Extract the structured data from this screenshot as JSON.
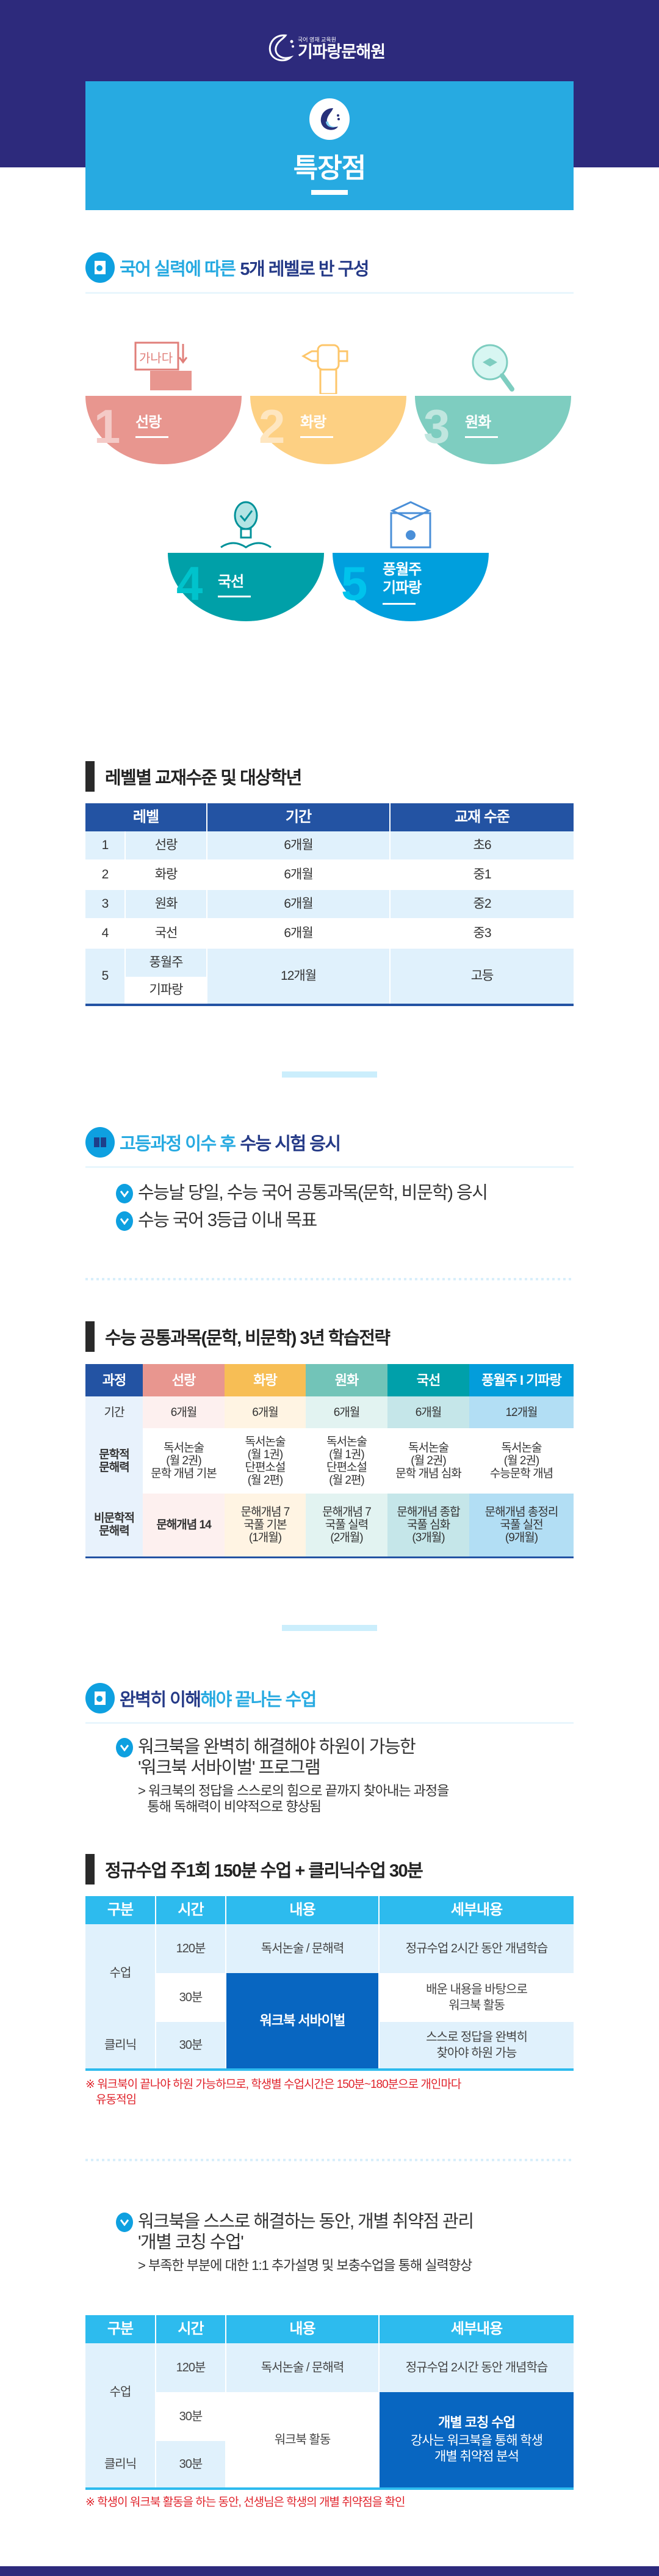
{
  "header": {
    "logo_sub": "국어 영재 교육원",
    "logo_main": "기파랑문해원",
    "hero_title": "특장점"
  },
  "colors": {
    "navy": "#2d2a7c",
    "sky": "#27aae1",
    "level1": "#e8968f",
    "level2": "#fdd083",
    "level3": "#7ecdc0",
    "level4": "#00a0a8",
    "level5": "#009fdd",
    "table_header": "#2353a3",
    "highlight": "#0866c1",
    "note_red": "#e0242c"
  },
  "section1": {
    "title_a": "국어 실력에 따른 ",
    "title_b": "5개 레벨로 반 구성",
    "levels": [
      {
        "num": "1",
        "label": "선랑",
        "icon": "speech-bubbles-icon"
      },
      {
        "num": "2",
        "label": "화랑",
        "icon": "fist-pencil-icon"
      },
      {
        "num": "3",
        "label": "원화",
        "icon": "magnifier-graduation-cap-icon"
      },
      {
        "num": "4",
        "label": "국선",
        "icon": "lightbulb-book-icon"
      },
      {
        "num": "5",
        "label": "풍월주",
        "label2": "기파랑",
        "icon": "graduation-certificate-icon"
      }
    ]
  },
  "table1": {
    "title": "레벨별 교재수준 및 대상학년",
    "headers": [
      "레벨",
      "기간",
      "교재 수준"
    ],
    "rows": [
      [
        "1",
        "선랑",
        "6개월",
        "초6"
      ],
      [
        "2",
        "화랑",
        "6개월",
        "중1"
      ],
      [
        "3",
        "원화",
        "6개월",
        "중2"
      ],
      [
        "4",
        "국선",
        "6개월",
        "중3"
      ]
    ],
    "last": {
      "num": "5",
      "name1": "풍월주",
      "name2": "기파랑",
      "period": "12개월",
      "level": "고등"
    }
  },
  "section2": {
    "title_a": "고등과정 이수 후 ",
    "title_b": "수능 시험 응시",
    "bullets": [
      "수능날 당일, 수능 국어 공통과목(문학, 비문학) 응시",
      "수능 국어 3등급 이내 목표"
    ]
  },
  "table3": {
    "title": "수능 공통과목(문학, 비문학) 3년 학습전략",
    "headers": [
      "과정",
      "선랑",
      "화랑",
      "원화",
      "국선",
      "풍월주 I 기파랑"
    ],
    "header_colors": [
      "#2353a3",
      "#e8968f",
      "#f7be55",
      "#72c4b8",
      "#00a0aa",
      "#039ddb"
    ],
    "col_colors": [
      "#e8f2fc",
      "#fdf0ef",
      "#fff4e3",
      "#e2f3f1",
      "#c5e6e9",
      "#b2def4"
    ],
    "rows": [
      {
        "label": "기간",
        "cells": [
          "6개월",
          "6개월",
          "6개월",
          "6개월",
          "12개월"
        ]
      },
      {
        "label": "문학적\n문해력",
        "cells": [
          "독서논술\n(월 2권)\n문학 개념 기본",
          "독서논술\n(월 1권)\n단편소설\n(월 2편)",
          "독서논술\n(월 1권)\n단편소설\n(월 2편)",
          "독서논술\n(월 2권)\n문학 개념 심화",
          "독서논술\n(월 2권)\n수능문학 개념"
        ]
      },
      {
        "label": "비문학적\n문해력",
        "cells": [
          "문해개념 14",
          "문해개념 7\n국풀 기본\n(1개월)",
          "문해개념 7\n국풀 실력\n(2개월)",
          "문해개념 종합\n국풀 심화\n(3개월)",
          "문해개념 총정리\n국풀 실전\n(9개월)"
        ]
      }
    ]
  },
  "section3": {
    "title_a": "완벽히 이해",
    "title_b": "해야 끝나는 수업",
    "bullet": "워크북을 완벽히 해결해야 하원이 가능한\n'워크북 서바이벌' 프로그램",
    "sub": "> 워크북의 정답을 스스로의 힘으로 끝까지 찾아내는 과정을\n   통해 독해력이 비약적으로 향상됨"
  },
  "table4": {
    "title": "정규수업 주1회 150분 수업 + 클리닉수업 30분",
    "headers": [
      "구분",
      "시간",
      "내용",
      "세부내용"
    ],
    "class": "수업",
    "clinic": "클리닉",
    "t120": "120분",
    "t30a": "30분",
    "t30b": "30분",
    "content1": "독서논술 / 문해력",
    "detail1": "정규수업 2시간 동안 개념학습",
    "content2": "워크북 서바이벌",
    "detail2": "배운 내용을 바탕으로\n워크북 활동",
    "detail3": "스스로 정답을 완벽히\n찾아야 하원 가능",
    "note": "※ 워크북이 끝나야 하원 가능하므로, 학생별 수업시간은 150분~180분으로 개인마다\n    유동적임"
  },
  "section4": {
    "bullet": "워크북을 스스로 해결하는 동안, 개별 취약점 관리\n'개별 코칭 수업'",
    "sub": "> 부족한 부분에 대한 1:1 추가설명 및 보충수업을 통해 실력향상"
  },
  "table5": {
    "headers": [
      "구분",
      "시간",
      "내용",
      "세부내용"
    ],
    "class": "수업",
    "clinic": "클리닉",
    "t120": "120분",
    "t30a": "30분",
    "t30b": "30분",
    "content1": "독서논술 / 문해력",
    "detail1": "정규수업 2시간 동안 개념학습",
    "content2": "워크북 활동",
    "detail2_title": "개별 코칭 수업",
    "detail2": "강사는 워크북을 통해 학생\n개별 취약점 분석",
    "note": "※ 학생이 워크북 활동을 하는 동안, 선생님은 학생의 개별 취약점을 확인"
  }
}
